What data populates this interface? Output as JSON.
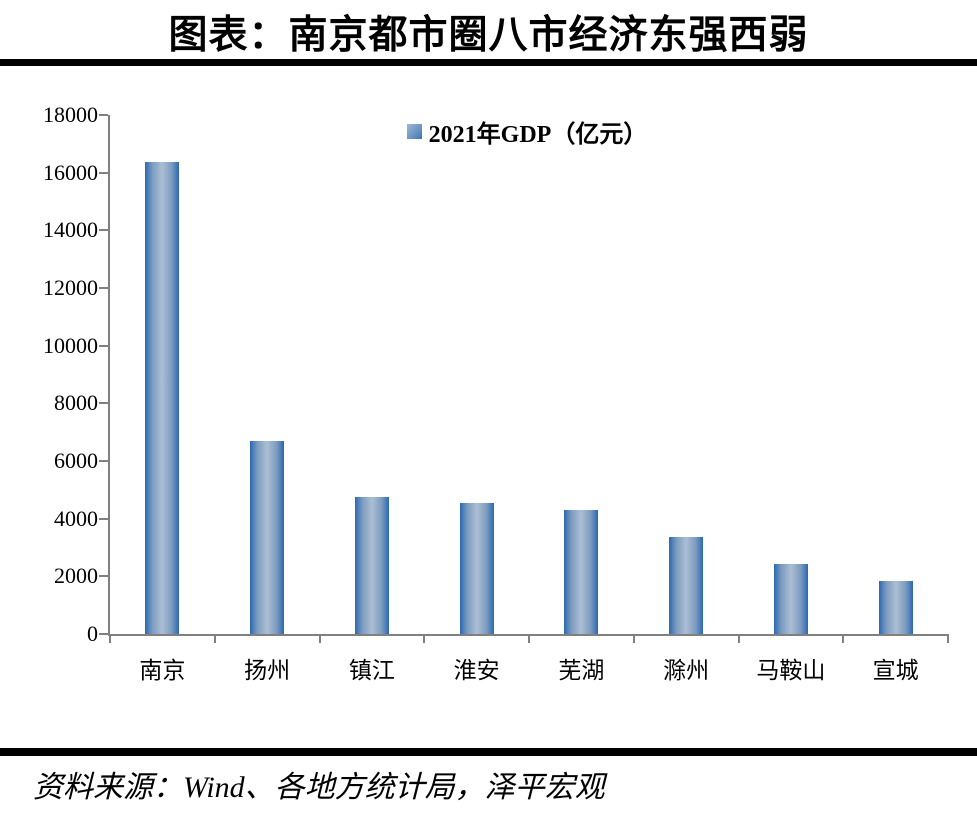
{
  "title": "图表：南京都市圈八市经济东强西弱",
  "legend": "2021年GDP（亿元）",
  "source": "资料来源：Wind、各地方统计局，泽平宏观",
  "chart_data": {
    "type": "bar",
    "title": "图表：南京都市圈八市经济东强西弱",
    "categories": [
      "南京",
      "扬州",
      "镇江",
      "淮安",
      "芜湖",
      "滁州",
      "马鞍山",
      "宣城"
    ],
    "values": [
      16355,
      6696,
      4763,
      4550,
      4303,
      3362,
      2439,
      1833
    ],
    "series_name": "2021年GDP（亿元）",
    "xlabel": "",
    "ylabel": "",
    "ylim": [
      0,
      18000
    ],
    "ytick_step": 2000,
    "ytick_labels": [
      "0",
      "2000",
      "4000",
      "6000",
      "8000",
      "10000",
      "12000",
      "14000",
      "16000",
      "18000"
    ],
    "grid": false,
    "legend_position": "top-center",
    "colors": {
      "bar_edge": "#2b69b1",
      "bar_center": "#a9bcd2",
      "axis": "#808080",
      "text": "#000000",
      "divider": "#000000"
    }
  }
}
